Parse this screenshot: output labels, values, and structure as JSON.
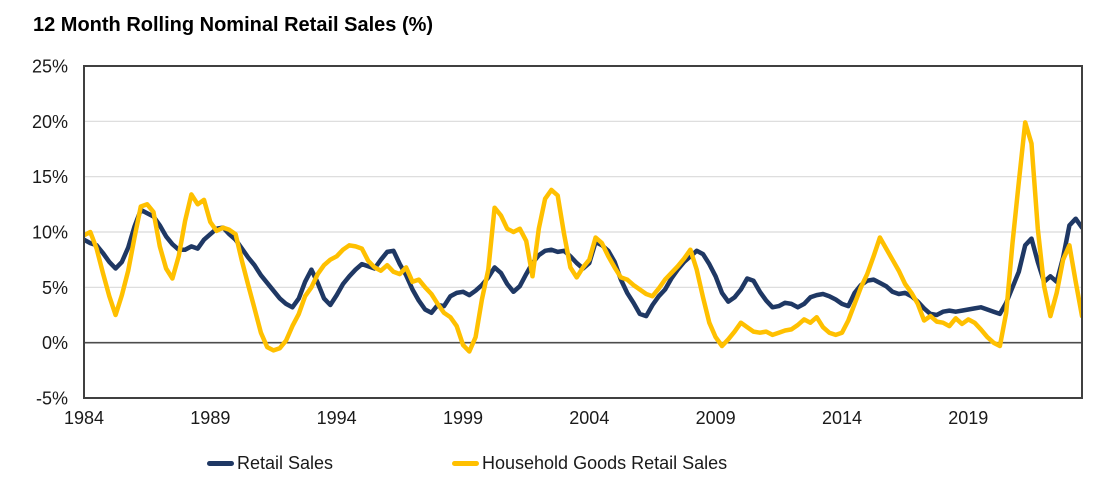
{
  "title": "12 Month Rolling Nominal Retail Sales (%)",
  "colors": {
    "background": "#FFFFFF",
    "grid": "#D9D9D9",
    "axis_border": "#404040",
    "zero_line": "#4D4D4D",
    "tick_text": "#1A1A1A",
    "retail_sales": "#1F3864",
    "household_goods": "#FFC000"
  },
  "chart_data": {
    "type": "line",
    "title": "12 Month Rolling Nominal Retail Sales (%)",
    "xlabel": "",
    "ylabel": "",
    "xlim": [
      1984,
      2023.5
    ],
    "ylim": [
      -5,
      25
    ],
    "x_ticks": [
      1984,
      1989,
      1994,
      1999,
      2004,
      2009,
      2014,
      2019
    ],
    "y_ticks": [
      25,
      20,
      15,
      10,
      5,
      0,
      -5
    ],
    "y_tick_suffix": "%",
    "y_gridlines": [
      20,
      15,
      10,
      5
    ],
    "zero_line": 0,
    "grid": "horizontal",
    "legend_position": "bottom",
    "x_start": 1984,
    "x_step": 0.25,
    "series": [
      {
        "name": "Retail Sales",
        "color": "#1F3864",
        "values": [
          9.3,
          9.0,
          8.8,
          8.1,
          7.3,
          6.7,
          7.3,
          8.6,
          10.5,
          12.0,
          11.7,
          11.4,
          10.6,
          9.6,
          8.9,
          8.4,
          8.4,
          8.7,
          8.5,
          9.3,
          9.8,
          10.3,
          10.4,
          9.8,
          9.3,
          8.5,
          7.7,
          7.0,
          6.1,
          5.4,
          4.7,
          4.0,
          3.5,
          3.2,
          4.0,
          5.5,
          6.6,
          5.4,
          4.0,
          3.4,
          4.3,
          5.3,
          6.0,
          6.6,
          7.1,
          6.9,
          6.7,
          7.5,
          8.2,
          8.3,
          7.1,
          6.1,
          4.8,
          3.8,
          3.0,
          2.7,
          3.4,
          3.3,
          4.2,
          4.5,
          4.6,
          4.3,
          4.7,
          5.2,
          5.9,
          6.8,
          6.3,
          5.3,
          4.6,
          5.1,
          6.2,
          7.2,
          7.9,
          8.3,
          8.4,
          8.2,
          8.3,
          7.8,
          7.2,
          6.7,
          7.2,
          9.1,
          8.8,
          8.3,
          7.3,
          5.7,
          4.5,
          3.6,
          2.6,
          2.4,
          3.4,
          4.2,
          4.8,
          5.8,
          6.6,
          7.3,
          7.8,
          8.3,
          8.0,
          7.1,
          6.0,
          4.5,
          3.7,
          4.1,
          4.8,
          5.8,
          5.6,
          4.6,
          3.8,
          3.2,
          3.3,
          3.6,
          3.5,
          3.2,
          3.5,
          4.1,
          4.3,
          4.4,
          4.2,
          3.9,
          3.5,
          3.3,
          4.5,
          5.2,
          5.6,
          5.7,
          5.4,
          5.1,
          4.6,
          4.4,
          4.5,
          4.2,
          3.7,
          3.1,
          2.6,
          2.5,
          2.8,
          2.9,
          2.8,
          2.9,
          3.0,
          3.1,
          3.2,
          3.0,
          2.8,
          2.6,
          3.6,
          5.0,
          6.4,
          8.8,
          9.4,
          7.3,
          5.5,
          6.0,
          5.5,
          7.7,
          10.6,
          11.2,
          10.4
        ]
      },
      {
        "name": "Household Goods Retail Sales",
        "color": "#FFC000",
        "values": [
          9.7,
          10.0,
          8.5,
          6.3,
          4.2,
          2.5,
          4.3,
          6.5,
          9.5,
          12.3,
          12.5,
          11.8,
          8.7,
          6.7,
          5.8,
          7.8,
          11.0,
          13.4,
          12.5,
          12.9,
          10.9,
          10.1,
          10.4,
          10.2,
          9.8,
          7.4,
          5.2,
          3.1,
          0.9,
          -0.4,
          -0.7,
          -0.5,
          0.2,
          1.5,
          2.6,
          4.2,
          5.0,
          6.2,
          7.0,
          7.5,
          7.8,
          8.4,
          8.8,
          8.7,
          8.5,
          7.4,
          6.8,
          6.5,
          7.0,
          6.4,
          6.2,
          6.8,
          5.5,
          5.7,
          5.0,
          4.4,
          3.5,
          2.7,
          2.3,
          1.5,
          -0.2,
          -0.8,
          0.5,
          3.9,
          6.6,
          12.2,
          11.5,
          10.3,
          10.0,
          10.3,
          9.2,
          6.0,
          10.3,
          13.0,
          13.8,
          13.3,
          9.8,
          6.8,
          5.9,
          6.8,
          7.5,
          9.5,
          9.0,
          7.8,
          6.8,
          5.9,
          5.7,
          5.2,
          4.8,
          4.4,
          4.2,
          4.9,
          5.7,
          6.3,
          6.9,
          7.6,
          8.4,
          6.6,
          4.1,
          1.8,
          0.5,
          -0.3,
          0.3,
          1.0,
          1.8,
          1.4,
          1.0,
          0.9,
          1.0,
          0.7,
          0.9,
          1.1,
          1.2,
          1.6,
          2.1,
          1.8,
          2.3,
          1.4,
          0.9,
          0.7,
          0.9,
          2.0,
          3.5,
          5.0,
          6.2,
          7.8,
          9.5,
          8.5,
          7.5,
          6.5,
          5.3,
          4.5,
          3.5,
          2.0,
          2.4,
          1.9,
          1.8,
          1.5,
          2.2,
          1.7,
          2.1,
          1.8,
          1.2,
          0.5,
          0.0,
          -0.3,
          2.7,
          9.0,
          14.5,
          19.9,
          18.0,
          10.3,
          5.1,
          2.4,
          4.5,
          7.5,
          8.8,
          5.5,
          2.4
        ]
      }
    ]
  },
  "legend": {
    "items": [
      {
        "label": "Retail Sales"
      },
      {
        "label": "Household Goods Retail Sales"
      }
    ]
  }
}
